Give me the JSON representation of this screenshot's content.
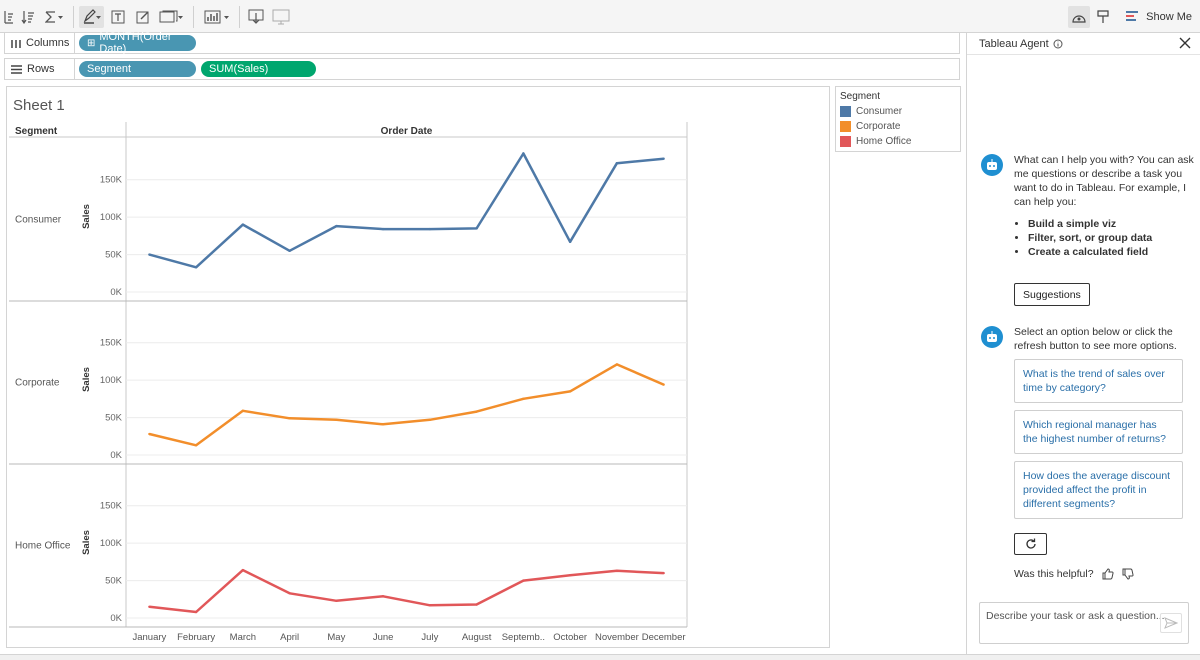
{
  "toolbar": {
    "show_me_label": "Show Me",
    "icons": [
      "sort-icon",
      "sigma-icon",
      "highlighter-icon",
      "text-box-icon",
      "annotate-icon",
      "fit-icon",
      "chart-type-icon",
      "download-icon",
      "presentation-icon",
      "share-icon",
      "format-icon",
      "show-me-icon"
    ]
  },
  "shelves": {
    "columns": {
      "label": "Columns",
      "pills": [
        {
          "text": "MONTH(Order Date)",
          "prefix": "⊞"
        }
      ]
    },
    "rows": {
      "label": "Rows",
      "pills": [
        {
          "text": "Segment"
        },
        {
          "text": "SUM(Sales)"
        }
      ]
    }
  },
  "sheet": {
    "title": "Sheet 1",
    "row_header": "Segment",
    "column_header": "Order Date",
    "legend": {
      "title": "Segment",
      "items": [
        {
          "label": "Consumer",
          "color": "#4e79a7"
        },
        {
          "label": "Corporate",
          "color": "#f28e2b"
        },
        {
          "label": "Home Office",
          "color": "#e15759"
        }
      ]
    }
  },
  "chart_data": {
    "type": "line",
    "categories": [
      "January",
      "February",
      "March",
      "April",
      "May",
      "June",
      "July",
      "August",
      "Septemb..",
      "October",
      "November",
      "December"
    ],
    "panel_ylabel": "Sales",
    "yticks": [
      "0K",
      "50K",
      "100K",
      "150K"
    ],
    "ylim": [
      0,
      195000
    ],
    "grid": true,
    "legend_position": "right",
    "series": [
      {
        "name": "Consumer",
        "color": "#4e79a7",
        "values": [
          50000,
          33000,
          90000,
          55000,
          88000,
          84000,
          84000,
          85000,
          185000,
          67000,
          172000,
          178000
        ]
      },
      {
        "name": "Corporate",
        "color": "#f28e2b",
        "values": [
          28000,
          13000,
          59000,
          49000,
          47000,
          41000,
          47000,
          58000,
          75000,
          85000,
          121000,
          94000
        ]
      },
      {
        "name": "Home Office",
        "color": "#e15759",
        "values": [
          15000,
          8000,
          64000,
          33000,
          23000,
          29000,
          17000,
          18000,
          50000,
          57000,
          63000,
          60000
        ]
      }
    ]
  },
  "agent": {
    "title": "Tableau Agent",
    "intro": "What can I help you with? You can ask me questions or describe a task you want to do in Tableau. For example, I can help you:",
    "capabilities": [
      "Build a simple viz",
      "Filter, sort, or group data",
      "Create a calculated field"
    ],
    "suggestions_button": "Suggestions",
    "select_prompt": "Select an option below or click the refresh button to see more options.",
    "options": [
      "What is the trend of sales over time by category?",
      "Which regional manager has the highest number of returns?",
      "How does the average discount provided affect the profit in different segments?"
    ],
    "helpful_label": "Was this helpful?",
    "input_placeholder": "Describe your task or ask a question..."
  }
}
